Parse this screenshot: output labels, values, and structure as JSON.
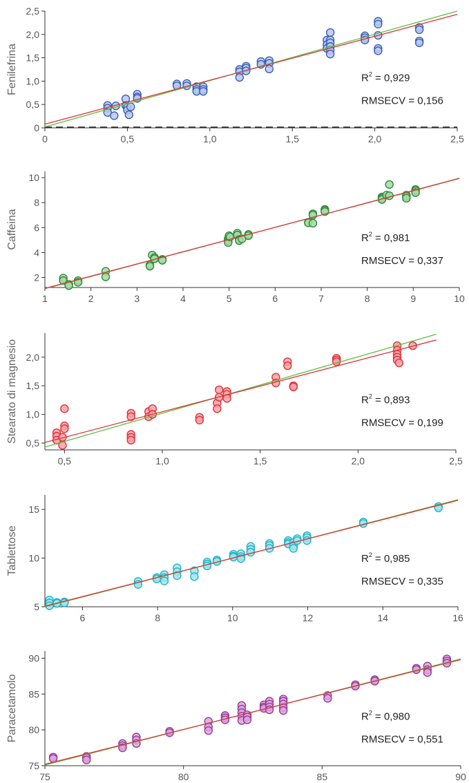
{
  "chart_data": [
    {
      "type": "scatter",
      "ylabel": "Fenilefrina",
      "xlim": [
        0,
        2.5
      ],
      "ylim": [
        0,
        2.5
      ],
      "xticks": [
        "0",
        "0,5",
        "1,0",
        "1,5",
        "2,0",
        "2,5"
      ],
      "xtick_values": [
        0,
        0.5,
        1.0,
        1.5,
        2.0,
        2.5
      ],
      "yticks": [
        "0",
        "0,5",
        "1,0",
        "1,5",
        "2,0",
        "2,5"
      ],
      "ytick_values": [
        0,
        0.5,
        1.0,
        1.5,
        2.0,
        2.5
      ],
      "r2_label": "R",
      "r2_value": " = 0,929",
      "rmsecv_text": "RMSECV = 0,156",
      "dashed_zero_line": true,
      "color": "#3a5fb5",
      "fill": "#b9c8ec",
      "fit_line": [
        [
          0,
          0.08
        ],
        [
          2.5,
          2.43
        ]
      ],
      "ideal_line": [
        [
          0,
          0.02
        ],
        [
          2.5,
          2.5
        ]
      ],
      "points": [
        [
          0.38,
          0.48
        ],
        [
          0.38,
          0.42
        ],
        [
          0.38,
          0.33
        ],
        [
          0.42,
          0.26
        ],
        [
          0.43,
          0.47
        ],
        [
          0.49,
          0.62
        ],
        [
          0.49,
          0.48
        ],
        [
          0.5,
          0.44
        ],
        [
          0.5,
          0.38
        ],
        [
          0.51,
          0.28
        ],
        [
          0.52,
          0.45
        ],
        [
          0.56,
          0.72
        ],
        [
          0.56,
          0.66
        ],
        [
          0.56,
          0.63
        ],
        [
          0.8,
          0.94
        ],
        [
          0.8,
          0.9
        ],
        [
          0.86,
          0.95
        ],
        [
          0.86,
          0.9
        ],
        [
          0.92,
          0.88
        ],
        [
          0.92,
          0.82
        ],
        [
          0.92,
          0.78
        ],
        [
          0.96,
          0.88
        ],
        [
          0.96,
          0.82
        ],
        [
          0.96,
          0.78
        ],
        [
          1.18,
          1.25
        ],
        [
          1.18,
          1.2
        ],
        [
          1.18,
          1.08
        ],
        [
          1.22,
          1.32
        ],
        [
          1.22,
          1.28
        ],
        [
          1.22,
          1.22
        ],
        [
          1.31,
          1.42
        ],
        [
          1.31,
          1.36
        ],
        [
          1.36,
          1.44
        ],
        [
          1.36,
          1.38
        ],
        [
          1.36,
          1.26
        ],
        [
          1.71,
          1.88
        ],
        [
          1.71,
          1.78
        ],
        [
          1.71,
          1.7
        ],
        [
          1.73,
          2.04
        ],
        [
          1.73,
          1.88
        ],
        [
          1.73,
          1.82
        ],
        [
          1.73,
          1.74
        ],
        [
          1.73,
          1.66
        ],
        [
          1.73,
          1.58
        ],
        [
          1.94,
          1.97
        ],
        [
          1.94,
          1.93
        ],
        [
          1.94,
          1.88
        ],
        [
          2.02,
          2.28
        ],
        [
          2.02,
          2.22
        ],
        [
          2.02,
          1.98
        ],
        [
          2.02,
          1.7
        ],
        [
          2.02,
          1.65
        ],
        [
          2.27,
          2.15
        ],
        [
          2.27,
          2.1
        ],
        [
          2.27,
          1.86
        ],
        [
          2.27,
          1.82
        ]
      ]
    },
    {
      "type": "scatter",
      "ylabel": "Caffeina",
      "xlim": [
        1,
        10
      ],
      "ylim": [
        1.2,
        10.5
      ],
      "xticks": [
        "1",
        "2",
        "3",
        "4",
        "5",
        "6",
        "7",
        "8",
        "9",
        "10"
      ],
      "xtick_values": [
        1,
        2,
        3,
        4,
        5,
        6,
        7,
        8,
        9,
        10
      ],
      "yticks": [
        "2",
        "4",
        "6",
        "8",
        "10"
      ],
      "ytick_values": [
        2,
        4,
        6,
        8,
        10
      ],
      "r2_label": "R",
      "r2_value": " = 0,981",
      "rmsecv_text": "RMSECV = 0,337",
      "dashed_zero_line": false,
      "color": "#2e8b3a",
      "fill": "#a8d8a8",
      "fit_line": [
        [
          1,
          1.13
        ],
        [
          10,
          9.93
        ]
      ],
      "ideal_line": [
        [
          1,
          1.1
        ],
        [
          10,
          9.96
        ]
      ],
      "points": [
        [
          1.4,
          1.95
        ],
        [
          1.4,
          1.75
        ],
        [
          1.52,
          1.45
        ],
        [
          1.52,
          1.35
        ],
        [
          1.72,
          1.75
        ],
        [
          1.72,
          1.62
        ],
        [
          2.32,
          2.5
        ],
        [
          2.32,
          2.05
        ],
        [
          3.28,
          3.0
        ],
        [
          3.28,
          2.9
        ],
        [
          3.33,
          3.8
        ],
        [
          3.38,
          3.6
        ],
        [
          3.38,
          3.5
        ],
        [
          3.55,
          3.45
        ],
        [
          3.55,
          3.38
        ],
        [
          4.98,
          5.1
        ],
        [
          4.98,
          4.95
        ],
        [
          4.98,
          4.8
        ],
        [
          5.0,
          5.35
        ],
        [
          5.02,
          5.25
        ],
        [
          5.18,
          5.55
        ],
        [
          5.18,
          5.4
        ],
        [
          5.22,
          5.05
        ],
        [
          5.22,
          4.95
        ],
        [
          5.28,
          5.1
        ],
        [
          5.42,
          5.45
        ],
        [
          5.42,
          5.35
        ],
        [
          6.72,
          6.42
        ],
        [
          6.72,
          6.38
        ],
        [
          6.82,
          7.1
        ],
        [
          6.82,
          7.0
        ],
        [
          6.82,
          6.35
        ],
        [
          7.08,
          7.45
        ],
        [
          7.08,
          7.38
        ],
        [
          7.08,
          7.28
        ],
        [
          8.32,
          8.45
        ],
        [
          8.32,
          8.35
        ],
        [
          8.32,
          8.25
        ],
        [
          8.42,
          8.6
        ],
        [
          8.48,
          9.45
        ],
        [
          8.48,
          8.55
        ],
        [
          8.85,
          8.6
        ],
        [
          8.85,
          8.5
        ],
        [
          8.85,
          8.35
        ],
        [
          9.05,
          9.05
        ],
        [
          9.05,
          8.95
        ],
        [
          9.05,
          8.8
        ]
      ]
    },
    {
      "type": "scatter",
      "ylabel": "Stearato di magnesio",
      "xlim": [
        0.4,
        2.5
      ],
      "ylim": [
        0.38,
        2.42
      ],
      "xticks": [
        "0,5",
        "1,0",
        "1,5",
        "2,0",
        "2,5"
      ],
      "xtick_values": [
        0.5,
        1.0,
        1.5,
        2.0,
        2.5
      ],
      "yticks": [
        "0,5",
        "1,0",
        "1,5",
        "2,0"
      ],
      "ytick_values": [
        0.5,
        1.0,
        1.5,
        2.0
      ],
      "r2_label": "R",
      "r2_value": " = 0,893",
      "rmsecv_text": "RMSECV = 0,199",
      "dashed_zero_line": false,
      "color": "#e0323c",
      "fill": "#f5a3a8",
      "fit_line": [
        [
          0.4,
          0.51
        ],
        [
          2.4,
          2.3
        ]
      ],
      "ideal_line": [
        [
          0.4,
          0.43
        ],
        [
          2.4,
          2.4
        ]
      ],
      "points": [
        [
          0.46,
          0.68
        ],
        [
          0.46,
          0.62
        ],
        [
          0.46,
          0.55
        ],
        [
          0.49,
          0.6
        ],
        [
          0.49,
          0.46
        ],
        [
          0.5,
          1.1
        ],
        [
          0.5,
          0.8
        ],
        [
          0.5,
          0.75
        ],
        [
          0.84,
          1.02
        ],
        [
          0.84,
          0.96
        ],
        [
          0.84,
          0.65
        ],
        [
          0.84,
          0.6
        ],
        [
          0.84,
          0.55
        ],
        [
          0.93,
          1.05
        ],
        [
          0.93,
          0.96
        ],
        [
          0.95,
          1.1
        ],
        [
          0.95,
          1.0
        ],
        [
          1.19,
          0.95
        ],
        [
          1.19,
          0.9
        ],
        [
          1.28,
          1.2
        ],
        [
          1.28,
          1.1
        ],
        [
          1.29,
          1.43
        ],
        [
          1.29,
          1.3
        ],
        [
          1.33,
          1.4
        ],
        [
          1.33,
          1.35
        ],
        [
          1.33,
          1.28
        ],
        [
          1.58,
          1.65
        ],
        [
          1.58,
          1.55
        ],
        [
          1.64,
          1.92
        ],
        [
          1.64,
          1.85
        ],
        [
          1.67,
          1.5
        ],
        [
          1.67,
          1.48
        ],
        [
          1.89,
          1.98
        ],
        [
          1.89,
          1.95
        ],
        [
          1.89,
          1.92
        ],
        [
          2.2,
          2.2
        ],
        [
          2.2,
          2.12
        ],
        [
          2.2,
          2.05
        ],
        [
          2.2,
          2.0
        ],
        [
          2.2,
          1.95
        ],
        [
          2.21,
          1.9
        ],
        [
          2.28,
          2.2
        ]
      ]
    },
    {
      "type": "scatter",
      "ylabel": "Tablettose",
      "xlim": [
        5,
        16
      ],
      "ylim": [
        5,
        16.5
      ],
      "xticks": [
        "6",
        "8",
        "10",
        "12",
        "14",
        "16"
      ],
      "xtick_values": [
        6,
        8,
        10,
        12,
        14,
        16
      ],
      "yticks": [
        "5",
        "10",
        "15"
      ],
      "ytick_values": [
        5,
        10,
        15
      ],
      "r2_label": "R",
      "r2_value": " = 0,985",
      "rmsecv_text": "RMSECV = 0,335",
      "dashed_zero_line": false,
      "color": "#1fb5c8",
      "fill": "#a6e3ec",
      "fit_line": [
        [
          5,
          5.06
        ],
        [
          16,
          15.93
        ]
      ],
      "ideal_line": [
        [
          5,
          5.0
        ],
        [
          16,
          16.0
        ]
      ],
      "points": [
        [
          5.12,
          5.7
        ],
        [
          5.12,
          5.4
        ],
        [
          5.12,
          5.1
        ],
        [
          5.32,
          5.45
        ],
        [
          5.32,
          5.35
        ],
        [
          5.52,
          5.5
        ],
        [
          5.52,
          5.4
        ],
        [
          7.48,
          7.6
        ],
        [
          7.48,
          7.3
        ],
        [
          7.98,
          8.0
        ],
        [
          7.98,
          7.85
        ],
        [
          8.18,
          8.3
        ],
        [
          8.18,
          8.0
        ],
        [
          8.18,
          7.65
        ],
        [
          8.52,
          9.0
        ],
        [
          8.52,
          8.6
        ],
        [
          8.52,
          8.2
        ],
        [
          8.98,
          8.7
        ],
        [
          8.98,
          8.1
        ],
        [
          9.32,
          9.6
        ],
        [
          9.32,
          9.4
        ],
        [
          9.32,
          9.2
        ],
        [
          9.58,
          9.8
        ],
        [
          9.58,
          9.65
        ],
        [
          10.02,
          10.4
        ],
        [
          10.02,
          10.2
        ],
        [
          10.02,
          10.1
        ],
        [
          10.22,
          10.45
        ],
        [
          10.22,
          10.15
        ],
        [
          10.22,
          9.95
        ],
        [
          10.48,
          11.2
        ],
        [
          10.48,
          10.9
        ],
        [
          10.48,
          10.6
        ],
        [
          10.98,
          11.5
        ],
        [
          10.98,
          11.3
        ],
        [
          10.98,
          11.0
        ],
        [
          11.48,
          11.8
        ],
        [
          11.48,
          11.6
        ],
        [
          11.48,
          11.45
        ],
        [
          11.62,
          11.6
        ],
        [
          11.62,
          11.3
        ],
        [
          11.62,
          11.0
        ],
        [
          11.72,
          12.0
        ],
        [
          11.72,
          11.8
        ],
        [
          11.98,
          12.3
        ],
        [
          11.98,
          12.1
        ],
        [
          11.98,
          11.8
        ],
        [
          13.48,
          13.7
        ],
        [
          13.48,
          13.55
        ],
        [
          15.48,
          15.3
        ],
        [
          15.48,
          15.15
        ]
      ]
    },
    {
      "type": "scatter",
      "ylabel": "Paracetamolo",
      "xlim": [
        75,
        90
      ],
      "ylim": [
        75,
        91
      ],
      "xticks": [
        "75",
        "80",
        "85",
        "90"
      ],
      "xtick_values": [
        75,
        80,
        85,
        90
      ],
      "yticks": [
        "75",
        "80",
        "85",
        "90"
      ],
      "ytick_values": [
        75,
        80,
        85,
        90
      ],
      "r2_label": "R",
      "r2_value": " = 0,980",
      "rmsecv_text": "RMSECV = 0,551",
      "dashed_zero_line": false,
      "color": "#9b3a9e",
      "fill": "#d9a7dc",
      "fit_line": [
        [
          75,
          75.2
        ],
        [
          90,
          89.8
        ]
      ],
      "ideal_line": [
        [
          75,
          75.1
        ],
        [
          90,
          89.9
        ]
      ],
      "points": [
        [
          75.3,
          76.2
        ],
        [
          75.3,
          76.0
        ],
        [
          76.5,
          76.3
        ],
        [
          76.5,
          76.1
        ],
        [
          76.5,
          75.8
        ],
        [
          77.8,
          78.1
        ],
        [
          77.8,
          77.8
        ],
        [
          77.8,
          77.5
        ],
        [
          78.3,
          79.0
        ],
        [
          78.3,
          78.6
        ],
        [
          78.3,
          78.1
        ],
        [
          79.5,
          79.8
        ],
        [
          79.5,
          79.6
        ],
        [
          80.9,
          81.2
        ],
        [
          80.9,
          80.4
        ],
        [
          80.9,
          79.9
        ],
        [
          81.5,
          82.0
        ],
        [
          81.5,
          81.7
        ],
        [
          81.5,
          81.4
        ],
        [
          82.1,
          83.4
        ],
        [
          82.1,
          82.9
        ],
        [
          82.1,
          82.4
        ],
        [
          82.1,
          81.9
        ],
        [
          82.1,
          81.3
        ],
        [
          82.3,
          82.1
        ],
        [
          82.3,
          81.8
        ],
        [
          82.3,
          81.4
        ],
        [
          82.9,
          83.5
        ],
        [
          82.9,
          83.2
        ],
        [
          82.9,
          83.0
        ],
        [
          83.1,
          84.0
        ],
        [
          83.1,
          83.6
        ],
        [
          83.1,
          83.2
        ],
        [
          83.1,
          82.8
        ],
        [
          83.6,
          84.3
        ],
        [
          83.6,
          84.0
        ],
        [
          83.6,
          83.6
        ],
        [
          83.6,
          83.1
        ],
        [
          83.6,
          82.7
        ],
        [
          85.2,
          84.8
        ],
        [
          85.2,
          84.4
        ],
        [
          86.2,
          86.3
        ],
        [
          86.2,
          86.1
        ],
        [
          86.9,
          87.0
        ],
        [
          86.9,
          86.8
        ],
        [
          88.4,
          88.6
        ],
        [
          88.4,
          88.4
        ],
        [
          88.8,
          88.9
        ],
        [
          88.8,
          88.4
        ],
        [
          88.8,
          88.0
        ],
        [
          89.5,
          89.9
        ],
        [
          89.5,
          89.6
        ],
        [
          89.5,
          89.3
        ]
      ]
    }
  ],
  "colors": {
    "axis": "#333333",
    "fit_line": "#e0323c",
    "ideal_line": "#5cbf3a"
  }
}
